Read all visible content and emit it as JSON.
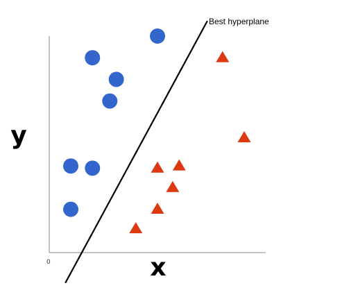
{
  "chart_data": {
    "type": "scatter",
    "title": "",
    "xlabel": "x",
    "ylabel": "y",
    "origin_tick": "0",
    "xlim": [
      0,
      10
    ],
    "ylim": [
      0,
      10
    ],
    "grid": false,
    "series": [
      {
        "marker": "circle",
        "color": "#3366cc",
        "points": [
          [
            5.0,
            10.0
          ],
          [
            2.0,
            9.0
          ],
          [
            3.1,
            8.0
          ],
          [
            2.8,
            7.0
          ],
          [
            1.0,
            4.0
          ],
          [
            2.0,
            3.9
          ],
          [
            1.0,
            2.0
          ]
        ]
      },
      {
        "marker": "triangle",
        "color": "#dc3912",
        "points": [
          [
            8.0,
            9.0
          ],
          [
            9.0,
            5.3
          ],
          [
            6.0,
            4.0
          ],
          [
            5.0,
            3.9
          ],
          [
            5.7,
            3.0
          ],
          [
            5.0,
            2.0
          ],
          [
            4.0,
            1.1
          ]
        ]
      }
    ],
    "annotations": [
      {
        "type": "line",
        "text": "Best hyperplane",
        "color": "#000000",
        "from": [
          0.75,
          -1.4
        ],
        "to": [
          7.3,
          10.7
        ]
      }
    ]
  }
}
